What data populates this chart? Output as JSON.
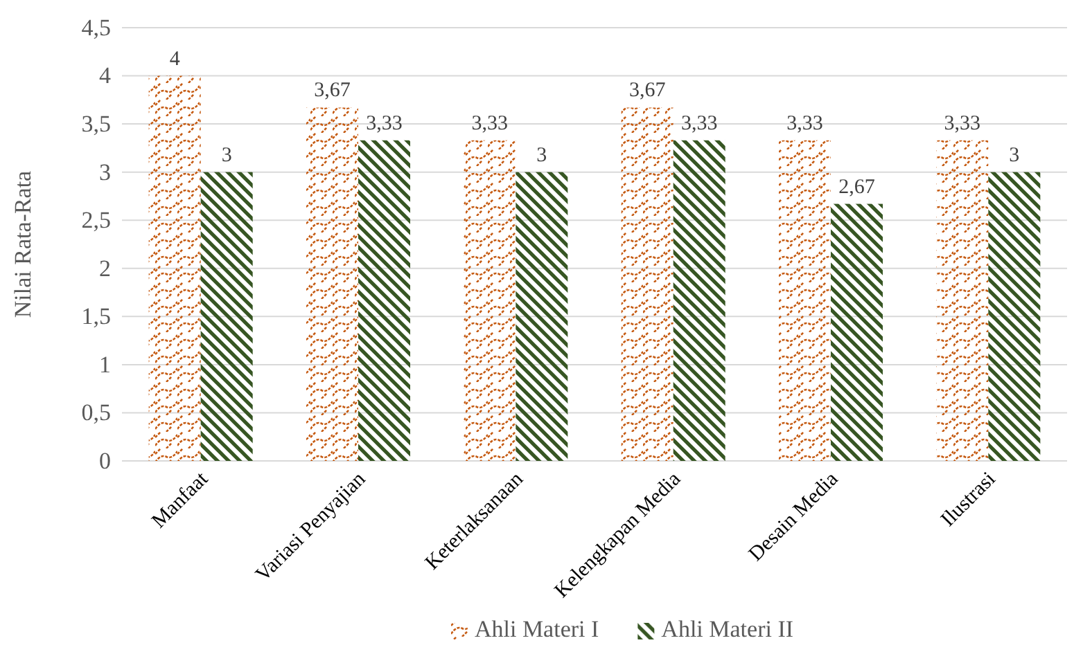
{
  "chart_data": {
    "type": "bar",
    "ylabel": "Nilai Rata-Rata",
    "categories": [
      "Manfaat",
      "Variasi Penyajian",
      "Keterlaksanaan",
      "Kelengkapan Media",
      "Desain Media",
      "Ilustrasi"
    ],
    "series": [
      {
        "name": "Ahli Materi I",
        "color": "#c55a11",
        "values": [
          4,
          3.67,
          3.33,
          3.67,
          3.33,
          3.33
        ],
        "value_labels": [
          "4",
          "3,67",
          "3,33",
          "3,67",
          "3,33",
          "3,33"
        ]
      },
      {
        "name": "Ahli Materi II",
        "color": "#375623",
        "values": [
          3,
          3.33,
          3,
          3.33,
          2.67,
          3
        ],
        "value_labels": [
          "3",
          "3,33",
          "3",
          "3,33",
          "2,67",
          "3"
        ]
      }
    ],
    "ylim": [
      0,
      4.5
    ],
    "yticks": [
      0,
      {
        "value": 0.5,
        "label": "0,5"
      },
      1,
      {
        "value": 1.5,
        "label": "1,5"
      },
      2,
      {
        "value": 2.5,
        "label": "2,5"
      },
      3,
      {
        "value": 3.5,
        "label": "3,5"
      },
      4,
      {
        "value": 4.5,
        "label": "4,5"
      }
    ],
    "grid": "y",
    "legend": "bottom"
  }
}
